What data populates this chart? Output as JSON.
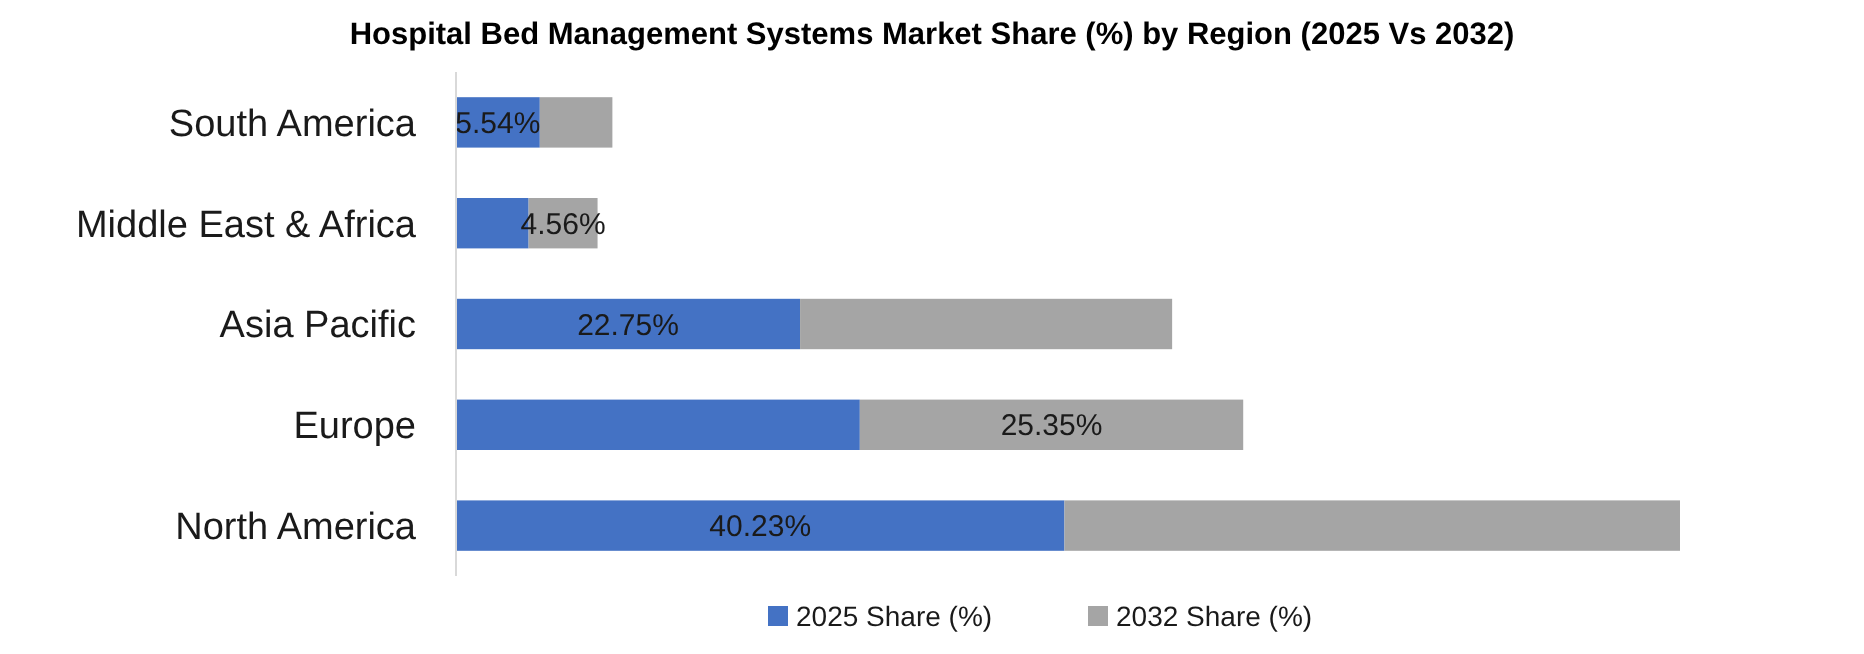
{
  "chart_data": {
    "type": "bar",
    "orientation": "horizontal",
    "stacked": true,
    "title": "Hospital Bed Management Systems Market Share (%) by Region (2025 Vs 2032)",
    "categories": [
      "South America",
      "Middle East & Africa",
      "Asia Pacific",
      "Europe",
      "North America"
    ],
    "legend": "bottom",
    "series": [
      {
        "name": "2025 Share (%)",
        "color": "#4472c4",
        "values": [
          5.54,
          4.8,
          22.75,
          26.7,
          40.23
        ],
        "value_labels": [
          "5.54%",
          null,
          "22.75%",
          null,
          "40.23%"
        ]
      },
      {
        "name": "2032 Share (%)",
        "color": "#a5a5a5",
        "values": [
          4.8,
          4.56,
          24.6,
          25.35,
          40.7
        ],
        "value_labels": [
          null,
          "4.56%",
          null,
          "25.35%",
          null
        ]
      }
    ]
  }
}
